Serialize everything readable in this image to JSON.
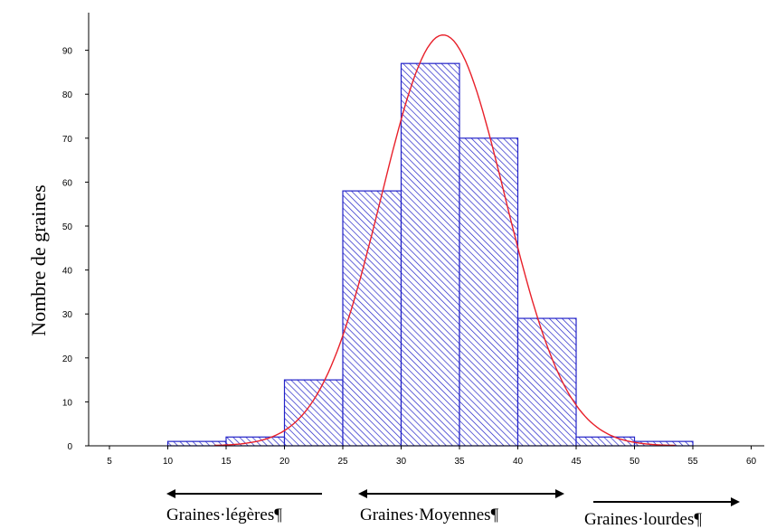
{
  "chart_data": {
    "type": "bar",
    "title": "",
    "xlabel": "",
    "ylabel": "Nombre de graines",
    "xlim": [
      5,
      60
    ],
    "ylim": [
      0,
      95
    ],
    "x_ticks": [
      "5",
      "10",
      "15",
      "20",
      "25",
      "30",
      "35",
      "40",
      "45",
      "50",
      "55",
      "60"
    ],
    "y_ticks": [
      "0",
      "10",
      "20",
      "30",
      "40",
      "50",
      "60",
      "70",
      "80",
      "90"
    ],
    "bins": [
      {
        "from": 10,
        "to": 15,
        "value": 1
      },
      {
        "from": 15,
        "to": 20,
        "value": 2
      },
      {
        "from": 20,
        "to": 25,
        "value": 15
      },
      {
        "from": 25,
        "to": 30,
        "value": 58
      },
      {
        "from": 30,
        "to": 35,
        "value": 87
      },
      {
        "from": 35,
        "to": 40,
        "value": 70
      },
      {
        "from": 40,
        "to": 45,
        "value": 29
      },
      {
        "from": 45,
        "to": 50,
        "value": 2
      },
      {
        "from": 50,
        "to": 55,
        "value": 1
      }
    ],
    "normal_fit": {
      "mean": 33.6,
      "sd": 5.3,
      "peak": 93.5,
      "color": "#e8202a"
    },
    "bar_color": "#2323c8",
    "grid": false,
    "categories_below": [
      {
        "label": "Graines·légères¶",
        "arrow": "left"
      },
      {
        "label": "Graines·Moyennes¶",
        "arrow": "both"
      },
      {
        "label": "Graines·lourdes¶",
        "arrow": "right"
      }
    ]
  }
}
